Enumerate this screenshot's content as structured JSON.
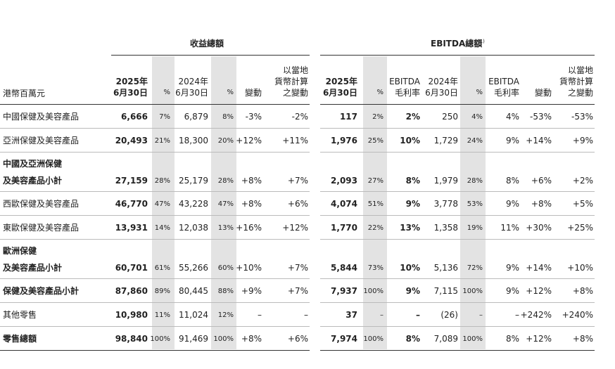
{
  "header": {
    "revenue_title": "收益總額",
    "ebitda_title": "EBITDA總額",
    "ebitda_note": "(1)",
    "unit": "港幣百萬元"
  },
  "columns": [
    [
      "2025年",
      "6月30日"
    ],
    [
      "%"
    ],
    [
      "2024年",
      "6月30日"
    ],
    [
      "%"
    ],
    [
      "變動"
    ],
    [
      "以當地",
      "貨幣計算",
      "之變動"
    ],
    [
      "2025年",
      "6月30日"
    ],
    [
      "%"
    ],
    [
      "EBITDA",
      "毛利率"
    ],
    [
      "2024年",
      "6月30日"
    ],
    [
      "%"
    ],
    [
      "EBITDA",
      "毛利率"
    ],
    [
      "變動"
    ],
    [
      "以當地",
      "貨幣計算",
      "之變動"
    ]
  ],
  "rows": [
    {
      "labels": [
        "中國保健及美容產品"
      ],
      "bold": false,
      "cells": [
        "6,666",
        "7%",
        "6,879",
        "8%",
        "-3%",
        "-2%",
        "117",
        "2%",
        "2%",
        "250",
        "4%",
        "4%",
        "-53%",
        "-53%"
      ]
    },
    {
      "labels": [
        "亞洲保健及美容產品"
      ],
      "bold": false,
      "cells": [
        "20,493",
        "21%",
        "18,300",
        "20%",
        "+12%",
        "+11%",
        "1,976",
        "25%",
        "10%",
        "1,729",
        "24%",
        "9%",
        "+14%",
        "+9%"
      ]
    },
    {
      "labels": [
        "中國及亞洲保健",
        "及美容產品小計"
      ],
      "bold": true,
      "cells": [
        "27,159",
        "28%",
        "25,179",
        "28%",
        "+8%",
        "+7%",
        "2,093",
        "27%",
        "8%",
        "1,979",
        "28%",
        "8%",
        "+6%",
        "+2%"
      ]
    },
    {
      "labels": [
        "西歐保健及美容產品"
      ],
      "bold": false,
      "cells": [
        "46,770",
        "47%",
        "43,228",
        "47%",
        "+8%",
        "+6%",
        "4,074",
        "51%",
        "9%",
        "3,778",
        "53%",
        "9%",
        "+8%",
        "+5%"
      ]
    },
    {
      "labels": [
        "東歐保健及美容產品"
      ],
      "bold": false,
      "cells": [
        "13,931",
        "14%",
        "12,038",
        "13%",
        "+16%",
        "+12%",
        "1,770",
        "22%",
        "13%",
        "1,358",
        "19%",
        "11%",
        "+30%",
        "+25%"
      ]
    },
    {
      "labels": [
        "歐洲保健",
        "及美容產品小計"
      ],
      "bold": true,
      "cells": [
        "60,701",
        "61%",
        "55,266",
        "60%",
        "+10%",
        "+7%",
        "5,844",
        "73%",
        "10%",
        "5,136",
        "72%",
        "9%",
        "+14%",
        "+10%"
      ]
    },
    {
      "labels": [
        "保健及美容產品小計"
      ],
      "bold": true,
      "cells": [
        "87,860",
        "89%",
        "80,445",
        "88%",
        "+9%",
        "+7%",
        "7,937",
        "100%",
        "9%",
        "7,115",
        "100%",
        "9%",
        "+12%",
        "+8%"
      ]
    },
    {
      "labels": [
        "其他零售"
      ],
      "bold": false,
      "cells": [
        "10,980",
        "11%",
        "11,024",
        "12%",
        "–",
        "–",
        "37",
        "–",
        "–",
        "(26)",
        "–",
        "–",
        "+242%",
        "+240%"
      ]
    },
    {
      "labels": [
        "零售總額"
      ],
      "bold": true,
      "cells": [
        "98,840",
        "100%",
        "91,469",
        "100%",
        "+8%",
        "+6%",
        "7,974",
        "100%",
        "8%",
        "7,089",
        "100%",
        "8%",
        "+12%",
        "+8%"
      ]
    }
  ]
}
